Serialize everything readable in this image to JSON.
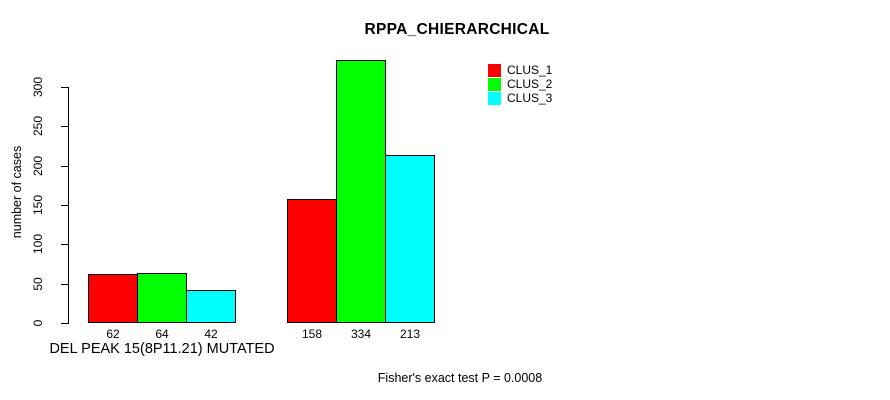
{
  "chart_data": {
    "type": "bar",
    "title": "RPPA_CHIERARCHICAL",
    "ylabel": "number of cases",
    "xlabel": "",
    "ylim": [
      0,
      334
    ],
    "yticks": [
      0,
      50,
      100,
      150,
      200,
      250,
      300
    ],
    "categories": [
      "DEL PEAK 15(8P11.21) MUTATED",
      ""
    ],
    "series": [
      {
        "name": "CLUS_1",
        "color": "#ff0000",
        "values": [
          62,
          158
        ]
      },
      {
        "name": "CLUS_2",
        "color": "#00ff00",
        "values": [
          64,
          334
        ]
      },
      {
        "name": "CLUS_3",
        "color": "#00ffff",
        "values": [
          42,
          213
        ]
      }
    ],
    "bar_value_labels": [
      [
        62,
        64,
        42
      ],
      [
        158,
        334,
        213
      ]
    ],
    "legend_position": "top-right",
    "grid": false,
    "annotation": "Fisher's exact test P = 0.0008"
  },
  "colors": {
    "background": "#ffffff",
    "axis": "#000000",
    "text": "#000000",
    "bar_border": "#000000",
    "clus_1": "#ff0000",
    "clus_2": "#00ff00",
    "clus_3": "#00ffff"
  }
}
